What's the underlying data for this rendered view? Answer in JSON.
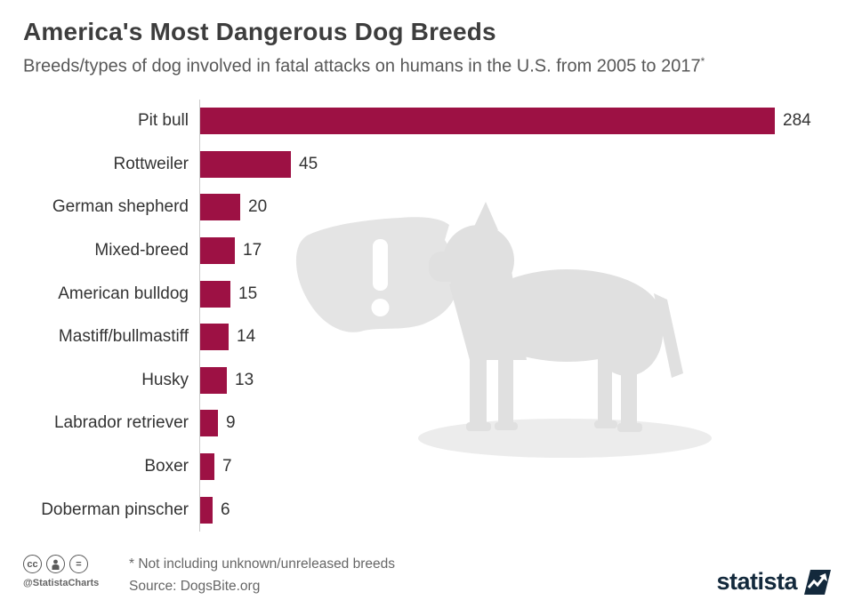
{
  "chart_data": {
    "type": "bar",
    "orientation": "horizontal",
    "title": "America's Most Dangerous Dog Breeds",
    "subtitle": "Breeds/types of dog involved in fatal attacks on humans in the U.S. from 2005 to 2017",
    "note_marker": "*",
    "categories": [
      "Pit bull",
      "Rottweiler",
      "German shepherd",
      "Mixed-breed",
      "American bulldog",
      "Mastiff/bullmastiff",
      "Husky",
      "Labrador retriever",
      "Boxer",
      "Doberman pinscher"
    ],
    "values": [
      284,
      45,
      20,
      17,
      15,
      14,
      13,
      9,
      7,
      6
    ],
    "bar_color": "#9d1144",
    "value_labels_shown": true,
    "xlim": [
      0,
      300
    ],
    "grid": false,
    "legend": "none"
  },
  "footer": {
    "license_icons": [
      {
        "name": "cc-icon",
        "glyph": "cc"
      },
      {
        "name": "attribution-icon",
        "glyph": "person"
      },
      {
        "name": "no-derivatives-icon",
        "glyph": "="
      }
    ],
    "handle": "@StatistaCharts",
    "footnote": "* Not including unknown/unreleased breeds",
    "source": "Source: DogsBite.org",
    "brand": "statista",
    "brand_color": "#13293c"
  }
}
